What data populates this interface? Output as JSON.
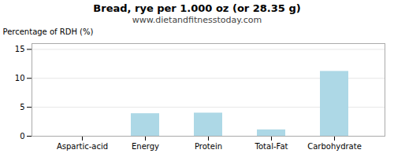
{
  "chart_data": {
    "type": "bar",
    "title": "Bread, rye per 1.000 oz (or 28.35 g)",
    "subtitle": "www.dietandfitnesstoday.com",
    "categories": [
      "Aspartic-acid",
      "Energy",
      "Protein",
      "Total-Fat",
      "Carbohydrate"
    ],
    "values": [
      0.0,
      3.9,
      4.0,
      1.1,
      11.2
    ],
    "color": "#add8e6",
    "ylabel": "Percentage of RDH (%)",
    "ylim": [
      0,
      16
    ],
    "yticks": [
      0,
      5,
      10,
      15
    ],
    "grid": true
  }
}
